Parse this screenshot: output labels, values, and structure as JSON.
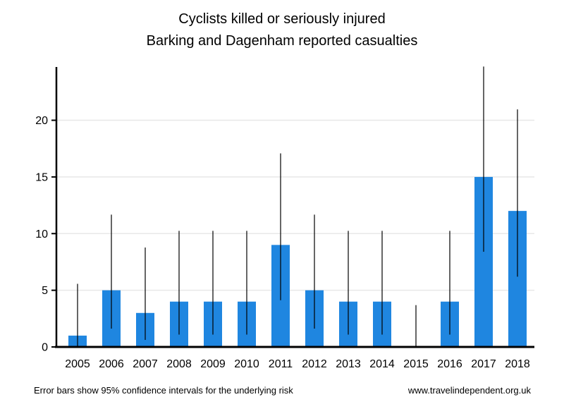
{
  "title": {
    "line1": "Cyclists killed or seriously injured",
    "line2": "Barking and Dagenham reported casualties"
  },
  "footer": {
    "note": "Error bars show 95% confidence intervals for the underlying risk",
    "website": "www.travelindependent.org.uk"
  },
  "chart_data": {
    "type": "bar",
    "title": "Cyclists killed or seriously injured",
    "subtitle": "Barking and Dagenham reported casualties",
    "categories": [
      "2005",
      "2006",
      "2007",
      "2008",
      "2009",
      "2010",
      "2011",
      "2012",
      "2013",
      "2014",
      "2015",
      "2016",
      "2017",
      "2018"
    ],
    "values": [
      1,
      5,
      3,
      4,
      4,
      4,
      9,
      5,
      4,
      4,
      0,
      4,
      15,
      12
    ],
    "error_low": [
      0.03,
      1.62,
      0.62,
      1.09,
      1.09,
      1.09,
      4.12,
      1.62,
      1.09,
      1.09,
      0.0,
      1.09,
      8.4,
      6.2
    ],
    "error_high": [
      5.57,
      11.67,
      8.77,
      10.24,
      10.24,
      10.24,
      17.08,
      11.67,
      10.24,
      10.24,
      3.69,
      10.24,
      24.74,
      20.96
    ],
    "xlabel": "",
    "ylabel": "",
    "yticks": [
      0,
      5,
      10,
      15,
      20
    ],
    "ylim": [
      0,
      24.7
    ],
    "grid": true,
    "legend": null,
    "bar_color": "#1F86E0",
    "error_bar_color": "#000000",
    "gridline_color": "#E8E8E8",
    "axis_color": "#000000"
  }
}
